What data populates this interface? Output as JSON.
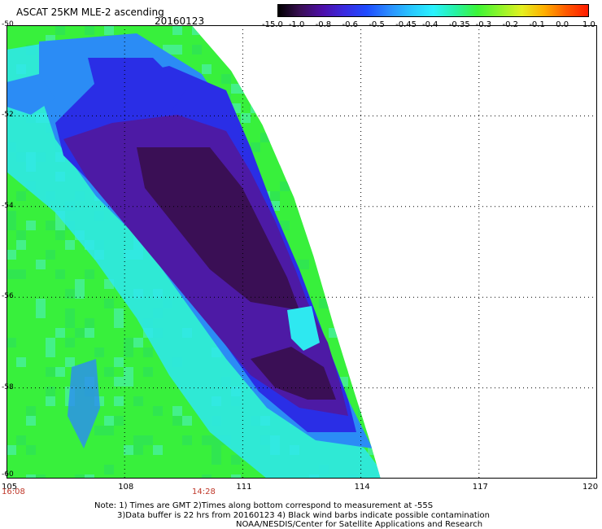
{
  "header": {
    "title": "ASCAT 25KM MLE-2 ascending",
    "date": "20160123"
  },
  "colorbar": {
    "labels": [
      "-15.0",
      "-1.0",
      "-0.8",
      "-0.6",
      "-0.5",
      "-0.45",
      "-0.4",
      "-0.35",
      "-0.3",
      "-0.2",
      "-0.1",
      "0.0",
      "1.0"
    ],
    "colors": [
      "#000000",
      "#3a0f55",
      "#4d0fa8",
      "#3a2be0",
      "#1f4cff",
      "#2a8cff",
      "#27c6ff",
      "#2af2ff",
      "#27f2a4",
      "#3cf537",
      "#8df52a",
      "#e4f020",
      "#ffb000",
      "#ff5a00",
      "#ff1a00"
    ]
  },
  "map": {
    "x_ticks": [
      "105",
      "108",
      "111",
      "114",
      "117",
      "120"
    ],
    "y_ticks": [
      "-50",
      "-52",
      "-54",
      "-56",
      "-58",
      "-60"
    ],
    "x_range": [
      105,
      120
    ],
    "y_range": [
      -50,
      -60
    ],
    "time_labels": [
      {
        "label": "16:08",
        "lon": 105
      },
      {
        "label": "14:28",
        "lon": 110
      }
    ],
    "swath_edge": [
      [
        109.7,
        -50.0
      ],
      [
        110.7,
        -51.0
      ],
      [
        111.5,
        -52.2
      ],
      [
        112.3,
        -53.8
      ],
      [
        112.8,
        -55.1
      ],
      [
        113.3,
        -56.6
      ],
      [
        113.8,
        -58.0
      ],
      [
        114.2,
        -59.1
      ],
      [
        114.5,
        -60.0
      ]
    ],
    "colors": {
      "dark_purple": "#3a0f55",
      "purple": "#4d1aa5",
      "blue": "#2a2ee6",
      "light_blue": "#2b8cf5",
      "cyan": "#2ee8f0",
      "green": "#38f03c",
      "light_green": "#44f08a"
    }
  },
  "notes": {
    "line1": "Note: 1) Times are GMT 2)Times along bottom correspond to measurement at -55S",
    "line2": "3)Data buffer is 22 hrs from 20160123 4) Black wind barbs indicate possible contamination",
    "line3": "NOAA/NESDIS/Center for Satellite Applications and Research"
  }
}
